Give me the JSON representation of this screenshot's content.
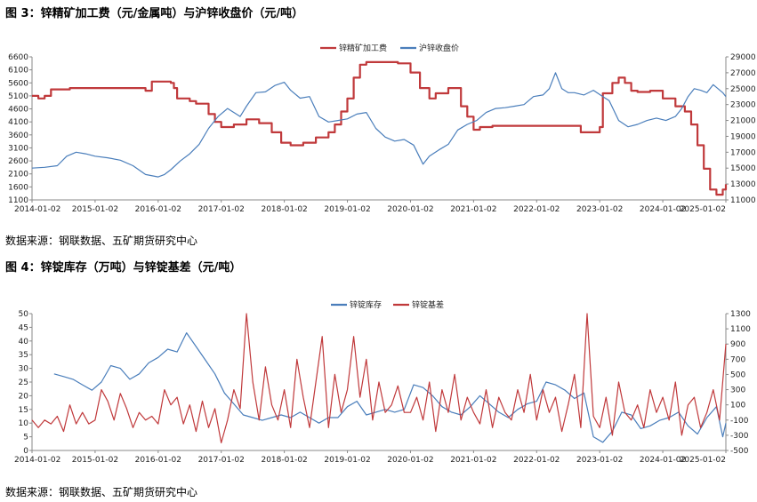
{
  "figure1": {
    "title": "图 3：锌精矿加工费（元/金属吨）与沪锌收盘价（元/吨）",
    "source": "数据来源：钢联数据、五矿期货研究中心"
  },
  "figure2": {
    "title": "图 4：锌锭库存（万吨）与锌锭基差（元/吨）",
    "source": "数据来源：钢联数据、五矿期货研究中心"
  },
  "colors": {
    "red": "#c0393b",
    "blue": "#4a7ebb",
    "axis": "#888888"
  },
  "chart_data": [
    {
      "type": "line",
      "x_ticks": [
        "2014-01-02",
        "2015-01-02",
        "2016-01-02",
        "2017-01-02",
        "2018-01-02",
        "2019-01-02",
        "2020-01-02",
        "2021-01-02",
        "2022-01-02",
        "2023-01-02",
        "2024-01-02",
        "2025-01-02"
      ],
      "x_range": [
        2014.0,
        2025.0
      ],
      "y_left": {
        "range": [
          1100,
          6600
        ],
        "ticks": [
          1100,
          1600,
          2100,
          2600,
          3100,
          3600,
          4100,
          4600,
          5100,
          5600,
          6100,
          6600
        ]
      },
      "y_right": {
        "range": [
          11000,
          29000
        ],
        "ticks": [
          11000,
          13000,
          15000,
          17000,
          19000,
          21000,
          23000,
          25000,
          27000,
          29000
        ]
      },
      "legend_position": "top",
      "series": [
        {
          "name": "锌精矿加工费",
          "axis": "left",
          "color": "#c0393b",
          "step": true,
          "x": [
            2014.0,
            2014.1,
            2014.2,
            2014.3,
            2014.6,
            2015.0,
            2015.5,
            2015.8,
            2015.9,
            2016.2,
            2016.25,
            2016.3,
            2016.5,
            2016.6,
            2016.8,
            2016.9,
            2017.0,
            2017.2,
            2017.4,
            2017.6,
            2017.8,
            2017.95,
            2018.1,
            2018.3,
            2018.5,
            2018.7,
            2018.8,
            2018.9,
            2019.0,
            2019.1,
            2019.2,
            2019.3,
            2019.5,
            2019.6,
            2019.8,
            2020.0,
            2020.15,
            2020.3,
            2020.4,
            2020.6,
            2020.8,
            2020.9,
            2021.0,
            2021.1,
            2021.3,
            2021.6,
            2022.0,
            2022.5,
            2022.7,
            2022.9,
            2023.0,
            2023.05,
            2023.2,
            2023.3,
            2023.4,
            2023.5,
            2023.6,
            2023.8,
            2024.0,
            2024.2,
            2024.35,
            2024.45,
            2024.55,
            2024.65,
            2024.75,
            2024.85,
            2024.95,
            2025.0
          ],
          "y": [
            5100,
            5000,
            5100,
            5350,
            5400,
            5400,
            5400,
            5300,
            5650,
            5600,
            5400,
            5000,
            4900,
            4800,
            4400,
            4100,
            3900,
            4000,
            4200,
            4050,
            3700,
            3300,
            3200,
            3300,
            3500,
            3700,
            4000,
            4500,
            5000,
            5800,
            6300,
            6400,
            6400,
            6400,
            6350,
            6000,
            5400,
            5000,
            5200,
            5400,
            4700,
            4300,
            3800,
            3900,
            3950,
            3950,
            3950,
            3950,
            3700,
            3700,
            3900,
            5200,
            5600,
            5800,
            5600,
            5300,
            5250,
            5300,
            5000,
            4700,
            4500,
            4000,
            3200,
            2300,
            1500,
            1300,
            1500,
            1700
          ]
        },
        {
          "name": "沪锌收盘价",
          "axis": "right",
          "color": "#4a7ebb",
          "step": false,
          "x": [
            2014.0,
            2014.2,
            2014.4,
            2014.55,
            2014.7,
            2014.85,
            2015.0,
            2015.2,
            2015.4,
            2015.6,
            2015.8,
            2016.0,
            2016.1,
            2016.2,
            2016.35,
            2016.5,
            2016.65,
            2016.8,
            2016.95,
            2017.1,
            2017.3,
            2017.4,
            2017.55,
            2017.7,
            2017.85,
            2018.0,
            2018.1,
            2018.25,
            2018.4,
            2018.55,
            2018.7,
            2018.85,
            2019.0,
            2019.15,
            2019.3,
            2019.45,
            2019.6,
            2019.75,
            2019.9,
            2020.05,
            2020.2,
            2020.3,
            2020.45,
            2020.6,
            2020.75,
            2020.9,
            2021.05,
            2021.2,
            2021.35,
            2021.5,
            2021.65,
            2021.8,
            2021.95,
            2022.1,
            2022.2,
            2022.3,
            2022.4,
            2022.5,
            2022.6,
            2022.75,
            2022.9,
            2023.05,
            2023.15,
            2023.3,
            2023.45,
            2023.6,
            2023.75,
            2023.9,
            2024.05,
            2024.2,
            2024.3,
            2024.4,
            2024.5,
            2024.6,
            2024.7,
            2024.8,
            2024.95,
            2025.0
          ],
          "y": [
            15000,
            15100,
            15300,
            16500,
            17000,
            16800,
            16500,
            16300,
            16000,
            15300,
            14200,
            13900,
            14200,
            14800,
            15900,
            16800,
            18000,
            20000,
            21500,
            22500,
            21500,
            22800,
            24500,
            24600,
            25400,
            25800,
            24800,
            23800,
            24000,
            21500,
            20800,
            21000,
            21200,
            21800,
            22000,
            20000,
            18900,
            18400,
            18600,
            17900,
            15500,
            16500,
            17300,
            18000,
            19800,
            20500,
            21000,
            22000,
            22500,
            22600,
            22800,
            23000,
            24000,
            24200,
            25000,
            27000,
            25000,
            24500,
            24500,
            24200,
            24800,
            24000,
            23500,
            21000,
            20200,
            20500,
            21000,
            21300,
            21000,
            21500,
            22500,
            24000,
            25000,
            24800,
            24500,
            25500,
            24500,
            24000
          ]
        }
      ]
    },
    {
      "type": "line",
      "x_ticks": [
        "2014-01-02",
        "2015-01-02",
        "2016-01-02",
        "2017-01-02",
        "2018-01-02",
        "2019-01-02",
        "2020-01-02",
        "2021-01-02",
        "2022-01-02",
        "2023-01-02",
        "2024-01-02",
        "2025-01-02"
      ],
      "x_range": [
        2014.0,
        2025.0
      ],
      "y_left": {
        "range": [
          0,
          50
        ],
        "ticks": [
          0,
          5,
          10,
          15,
          20,
          25,
          30,
          35,
          40,
          45,
          50
        ]
      },
      "y_right": {
        "range": [
          -500,
          1300
        ],
        "ticks": [
          -500,
          -300,
          -100,
          100,
          300,
          500,
          700,
          900,
          1100,
          1300
        ]
      },
      "legend_position": "top",
      "series": [
        {
          "name": "锌锭库存",
          "axis": "left",
          "color": "#4a7ebb",
          "step": false,
          "x": [
            2014.35,
            2014.5,
            2014.65,
            2014.8,
            2014.95,
            2015.1,
            2015.25,
            2015.4,
            2015.55,
            2015.7,
            2015.85,
            2016.0,
            2016.15,
            2016.3,
            2016.45,
            2016.6,
            2016.75,
            2016.9,
            2017.05,
            2017.2,
            2017.35,
            2017.5,
            2017.65,
            2017.8,
            2017.95,
            2018.1,
            2018.25,
            2018.4,
            2018.55,
            2018.7,
            2018.85,
            2019.0,
            2019.15,
            2019.3,
            2019.45,
            2019.6,
            2019.75,
            2019.9,
            2020.05,
            2020.2,
            2020.35,
            2020.5,
            2020.65,
            2020.8,
            2020.95,
            2021.1,
            2021.25,
            2021.4,
            2021.55,
            2021.7,
            2021.85,
            2022.0,
            2022.15,
            2022.3,
            2022.45,
            2022.6,
            2022.75,
            2022.9,
            2023.05,
            2023.2,
            2023.35,
            2023.5,
            2023.65,
            2023.8,
            2023.95,
            2024.1,
            2024.25,
            2024.4,
            2024.55,
            2024.7,
            2024.85,
            2024.95,
            2025.0
          ],
          "y": [
            28,
            27,
            26,
            24,
            22,
            25,
            31,
            30,
            26,
            28,
            32,
            34,
            37,
            36,
            43,
            38,
            33,
            28,
            21,
            17,
            13,
            12,
            11,
            12,
            13,
            12,
            14,
            12,
            10,
            12,
            12,
            16,
            18,
            13,
            14,
            15,
            14,
            15,
            24,
            23,
            20,
            16,
            14,
            13,
            16,
            20,
            17,
            14,
            12,
            15,
            17,
            18,
            25,
            24,
            22,
            19,
            21,
            5,
            3,
            7,
            14,
            13,
            8,
            9,
            11,
            12,
            14,
            9,
            6,
            12,
            16,
            5,
            10
          ]
        },
        {
          "name": "锌锭基差",
          "axis": "right",
          "color": "#c0393b",
          "step": false,
          "x": [
            2014.0,
            2014.1,
            2014.2,
            2014.3,
            2014.4,
            2014.5,
            2014.6,
            2014.7,
            2014.8,
            2014.9,
            2015.0,
            2015.1,
            2015.2,
            2015.3,
            2015.4,
            2015.5,
            2015.6,
            2015.7,
            2015.8,
            2015.9,
            2016.0,
            2016.1,
            2016.2,
            2016.3,
            2016.4,
            2016.5,
            2016.6,
            2016.7,
            2016.8,
            2016.9,
            2017.0,
            2017.1,
            2017.2,
            2017.3,
            2017.4,
            2017.5,
            2017.6,
            2017.7,
            2017.8,
            2017.9,
            2018.0,
            2018.1,
            2018.2,
            2018.3,
            2018.4,
            2018.5,
            2018.6,
            2018.7,
            2018.8,
            2018.9,
            2019.0,
            2019.1,
            2019.2,
            2019.3,
            2019.4,
            2019.5,
            2019.6,
            2019.7,
            2019.8,
            2019.9,
            2020.0,
            2020.1,
            2020.2,
            2020.3,
            2020.4,
            2020.5,
            2020.6,
            2020.7,
            2020.8,
            2020.9,
            2021.0,
            2021.1,
            2021.2,
            2021.3,
            2021.4,
            2021.5,
            2021.6,
            2021.7,
            2021.8,
            2021.9,
            2022.0,
            2022.1,
            2022.2,
            2022.3,
            2022.4,
            2022.5,
            2022.6,
            2022.7,
            2022.8,
            2022.9,
            2023.0,
            2023.1,
            2023.2,
            2023.3,
            2023.4,
            2023.5,
            2023.6,
            2023.7,
            2023.8,
            2023.9,
            2024.0,
            2024.1,
            2024.2,
            2024.3,
            2024.4,
            2024.5,
            2024.6,
            2024.7,
            2024.8,
            2024.9,
            2025.0
          ],
          "y": [
            -100,
            -200,
            -100,
            -150,
            -50,
            -250,
            100,
            -150,
            0,
            -150,
            -100,
            300,
            150,
            -100,
            250,
            50,
            -200,
            0,
            -100,
            -50,
            -150,
            300,
            100,
            200,
            -150,
            100,
            -250,
            150,
            -200,
            50,
            -400,
            -100,
            300,
            50,
            1300,
            400,
            -100,
            600,
            100,
            -100,
            300,
            -200,
            700,
            200,
            -200,
            400,
            1000,
            -200,
            500,
            0,
            300,
            1000,
            200,
            700,
            -100,
            400,
            0,
            100,
            350,
            0,
            0,
            200,
            -100,
            400,
            -250,
            300,
            0,
            500,
            -100,
            200,
            0,
            -150,
            300,
            -200,
            200,
            0,
            -100,
            300,
            0,
            500,
            -100,
            300,
            0,
            200,
            -250,
            100,
            500,
            -200,
            1300,
            -50,
            -200,
            200,
            -300,
            400,
            0,
            -100,
            100,
            -200,
            300,
            0,
            200,
            -100,
            400,
            -300,
            100,
            200,
            -200,
            0,
            300,
            -100,
            900
          ]
        }
      ]
    }
  ]
}
